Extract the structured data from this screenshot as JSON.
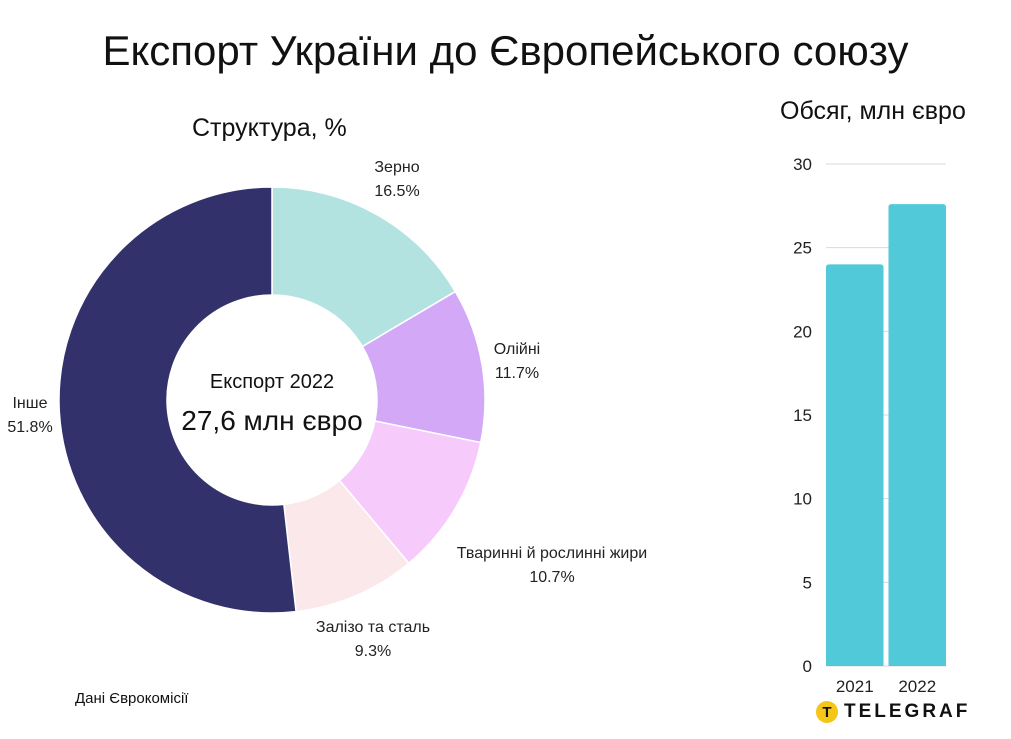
{
  "title": "Експорт України до Європейського союзу",
  "chart_data": [
    {
      "type": "pie",
      "donut": true,
      "title": "Структура, %",
      "center_label": "Експорт 2022",
      "center_value": "27,6 млн євро",
      "slices": [
        {
          "name": "Зерно",
          "value": 16.5,
          "label": "16.5%",
          "color": "#b3e3e1"
        },
        {
          "name": "Олійні",
          "value": 11.7,
          "label": "11.7%",
          "color": "#d2a8f7"
        },
        {
          "name": "Тваринні й рослинні жири",
          "value": 10.7,
          "label": "10.7%",
          "color": "#f6cbfc"
        },
        {
          "name": "Залізо та сталь",
          "value": 9.3,
          "label": "9.3%",
          "color": "#fbe8ea"
        },
        {
          "name": "Інше",
          "value": 51.8,
          "label": "51.8%",
          "color": "#33316b"
        }
      ]
    },
    {
      "type": "bar",
      "title": "Обсяг, млн євро",
      "categories": [
        "2021",
        "2022"
      ],
      "values": [
        24.0,
        27.6
      ],
      "ylim": [
        0,
        30
      ],
      "yticks": [
        "0",
        "5",
        "10",
        "15",
        "20",
        "25",
        "30"
      ],
      "grid": true,
      "color": "#52c9d9"
    }
  ],
  "source": "Дані Єврокомісії",
  "logo": {
    "mark": "T",
    "text": "TELEGRAF",
    "color": "#f5c518"
  }
}
